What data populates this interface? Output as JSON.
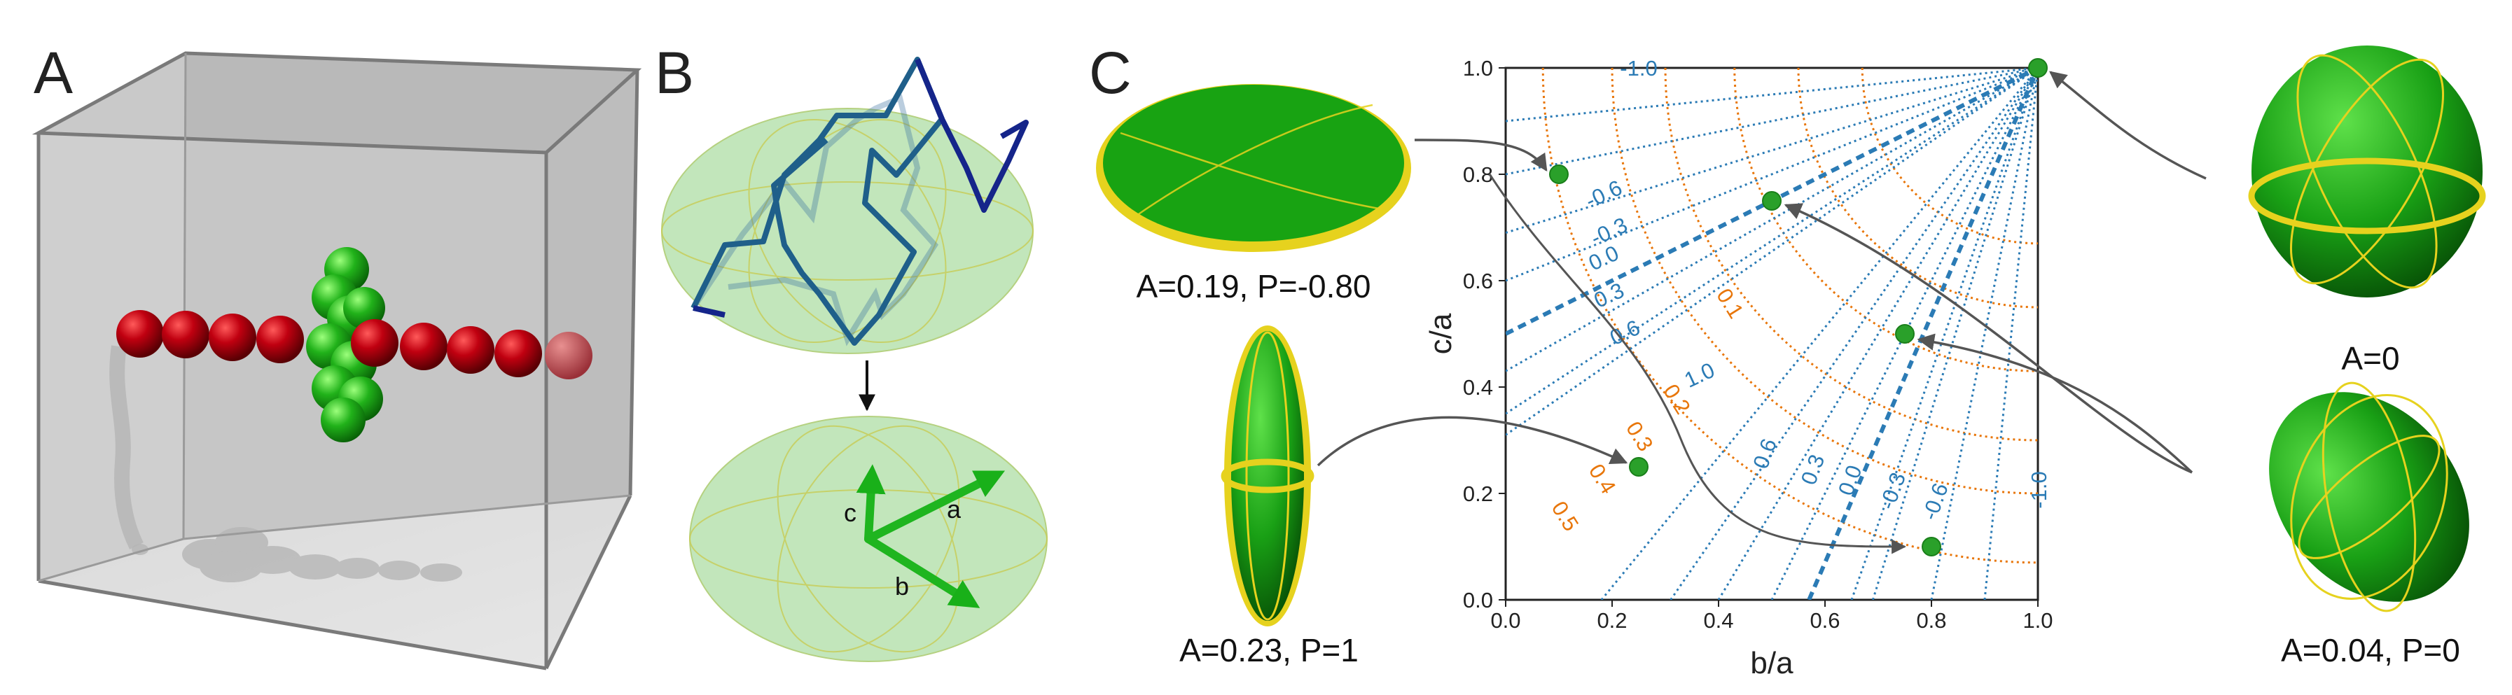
{
  "panels": {
    "a": {
      "label": "A"
    },
    "b": {
      "label": "B",
      "vector_labels": [
        "a",
        "b",
        "c"
      ]
    },
    "c": {
      "label": "C"
    }
  },
  "shapes": [
    {
      "id": "oblate",
      "caption": "A=0.19, P=-0.80",
      "point": [
        0.1,
        0.8
      ]
    },
    {
      "id": "prolate",
      "caption": "A=0.23, P=1",
      "point": [
        0.25,
        0.25
      ]
    },
    {
      "id": "sphere",
      "caption": "A=0",
      "point": [
        1.0,
        1.0
      ]
    },
    {
      "id": "triaxial",
      "caption": "A=0.04, P=0",
      "point": [
        0.5,
        0.75
      ]
    }
  ],
  "colors": {
    "blue": "#2b7bb5",
    "orange": "#e8760a",
    "green": "#2aa02a",
    "red": "#b0000c",
    "yellow": "#e6d21e"
  },
  "chart_data": {
    "type": "scatter",
    "xlabel": "b/a",
    "ylabel": "c/a",
    "xlim": [
      0,
      1
    ],
    "ylim": [
      0,
      1
    ],
    "xticks": [
      "0.0",
      "0.2",
      "0.4",
      "0.6",
      "0.8",
      "1.0"
    ],
    "yticks": [
      "0.0",
      "0.2",
      "0.4",
      "0.6",
      "0.8",
      "1.0"
    ],
    "points": [
      {
        "x": 0.1,
        "y": 0.8
      },
      {
        "x": 0.25,
        "y": 0.25
      },
      {
        "x": 0.5,
        "y": 0.75
      },
      {
        "x": 0.75,
        "y": 0.5
      },
      {
        "x": 0.8,
        "y": 0.1
      },
      {
        "x": 1.0,
        "y": 1.0
      }
    ],
    "anisotropy_contours": {
      "color": "orange",
      "levels": [
        "0.1",
        "0.2",
        "0.3",
        "0.4",
        "0.5"
      ]
    },
    "prolateness_contours": {
      "color": "blue",
      "lines": [
        {
          "start": [
            0.0,
            0.69
          ],
          "label": "-0.6"
        },
        {
          "start": [
            0.0,
            0.6
          ],
          "label": "-0.3"
        },
        {
          "start": [
            0.0,
            0.5
          ],
          "label": "0.0"
        },
        {
          "start": [
            0.0,
            0.43
          ],
          "label": "0.3"
        },
        {
          "start": [
            0.0,
            0.35
          ],
          "label": "0.6"
        },
        {
          "start": [
            0.0,
            0.31
          ],
          "label": "1.0"
        },
        {
          "start": [
            0.31,
            0.0
          ],
          "label": ""
        },
        {
          "start": [
            0.4,
            0.0
          ],
          "label": "0.6"
        },
        {
          "start": [
            0.5,
            0.0
          ],
          "label": "0.3"
        },
        {
          "start": [
            0.57,
            0.0
          ],
          "label": "0.0"
        },
        {
          "start": [
            0.65,
            0.0
          ],
          "label": "-0.3"
        },
        {
          "start": [
            0.69,
            0.0
          ],
          "label": "-0.6"
        }
      ],
      "top_edge_label": "-1.0",
      "right_edge_label": "-1.0"
    }
  }
}
